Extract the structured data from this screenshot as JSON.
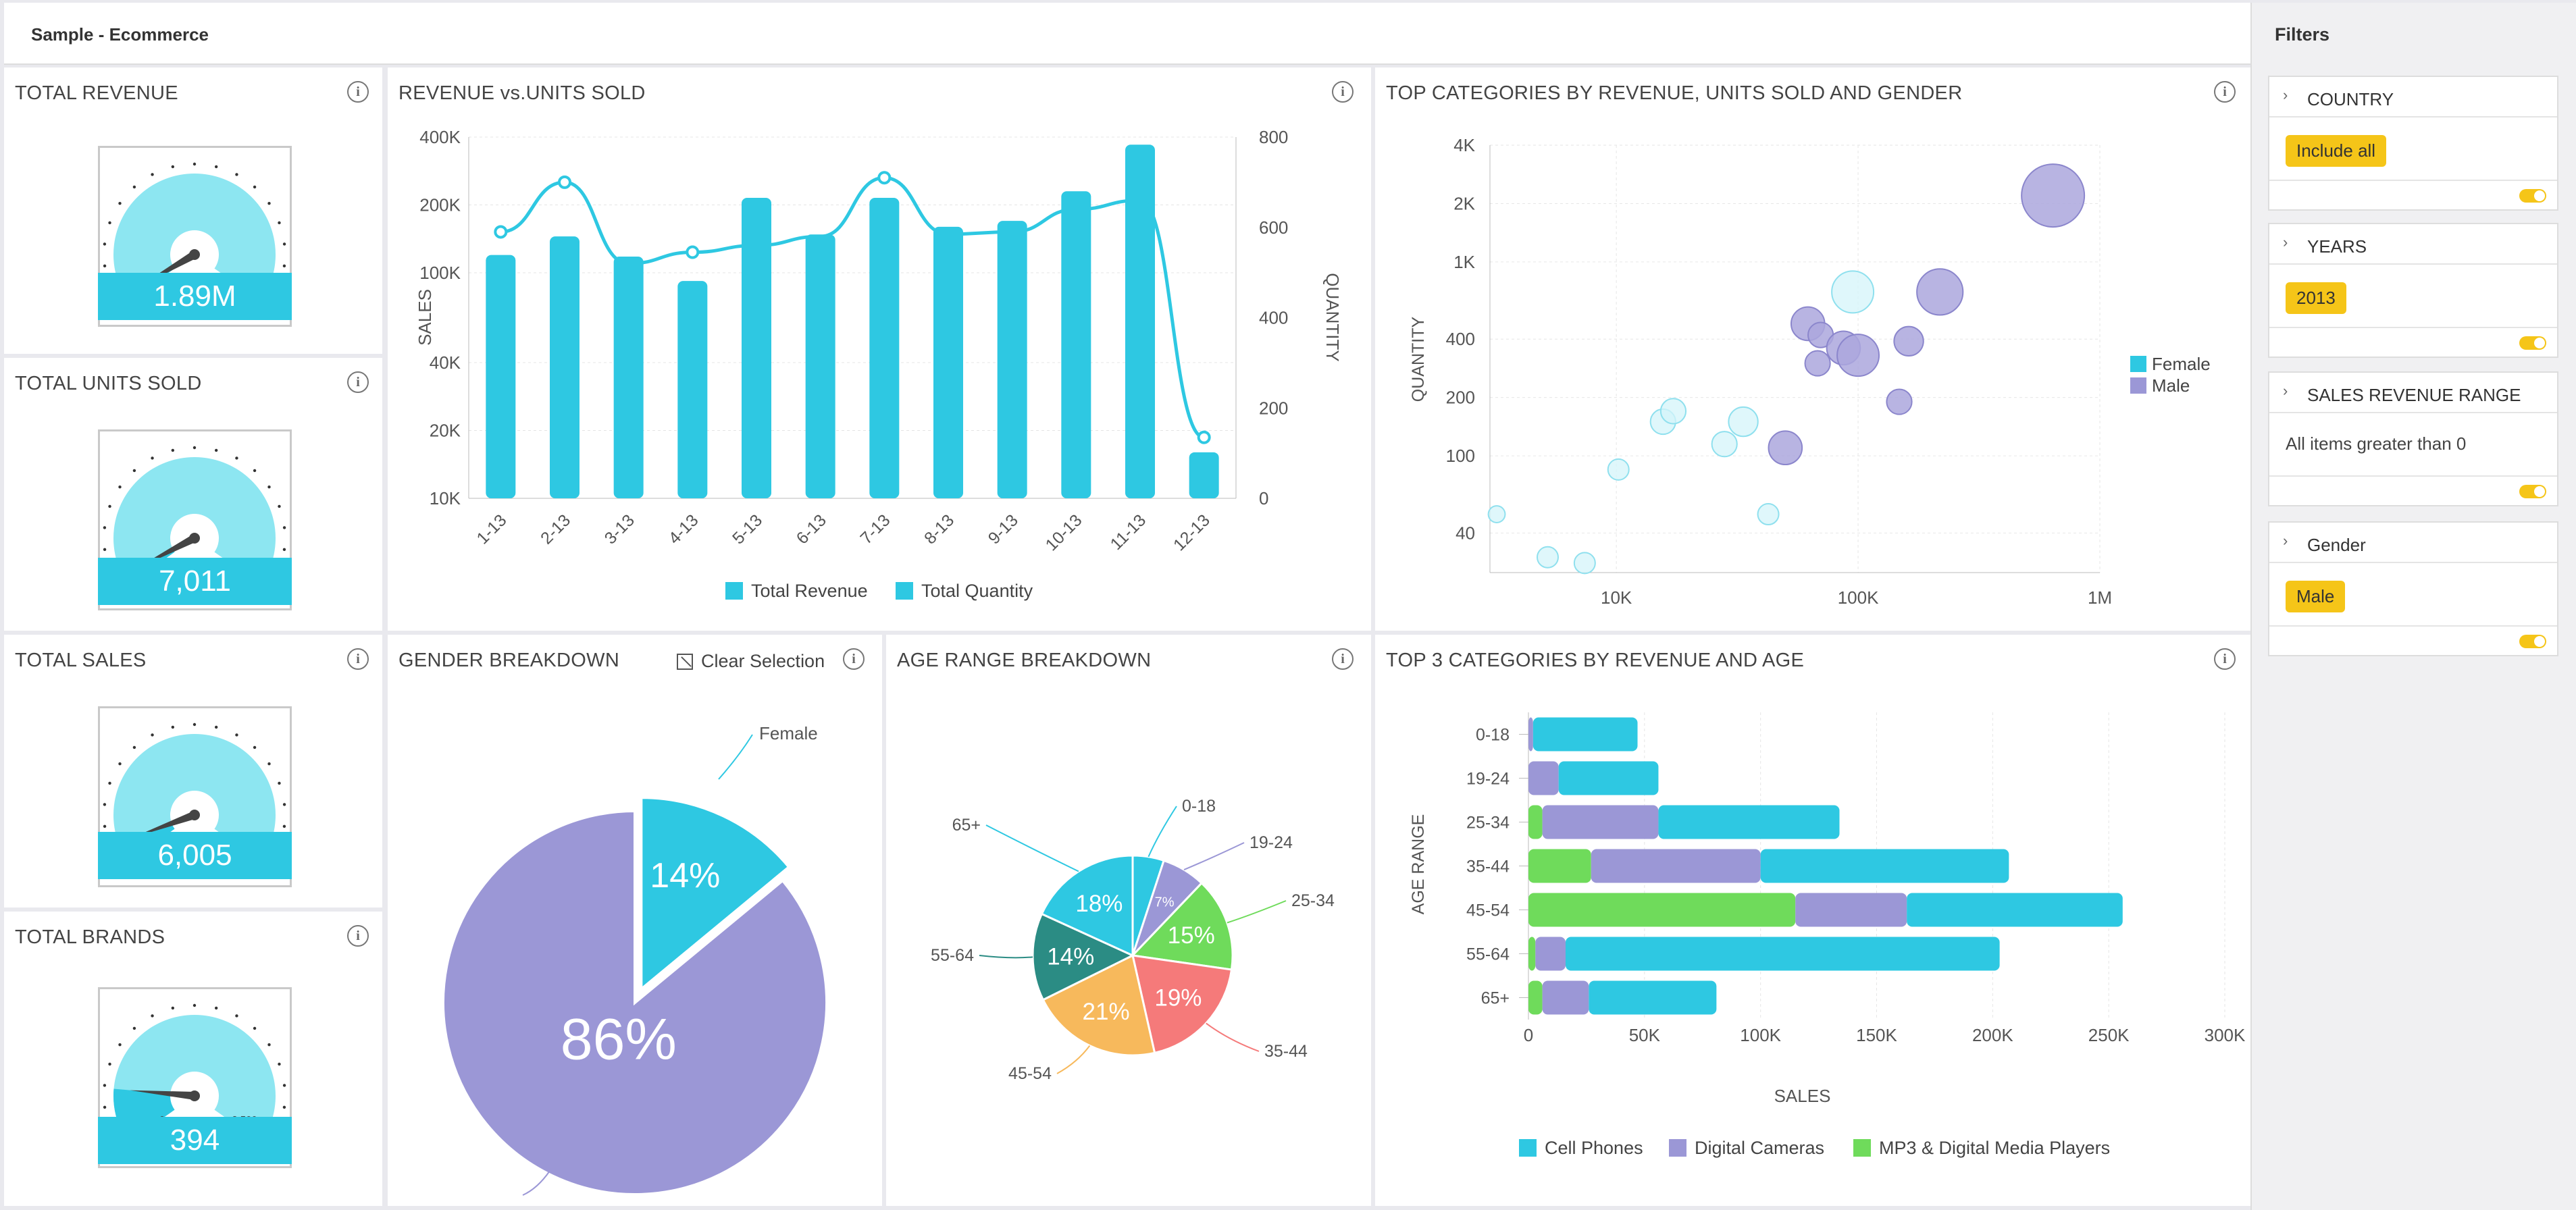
{
  "app": {
    "title": "Sample - Ecommerce"
  },
  "kpis": [
    {
      "title": "TOTAL REVENUE",
      "value": "1.89M",
      "min": "0",
      "max": "125M",
      "fraction": 0.02
    },
    {
      "title": "TOTAL UNITS SOLD",
      "value": "7,011",
      "min": "0",
      "max": "250K",
      "fraction": 0.03
    },
    {
      "title": "TOTAL SALES",
      "value": "6,005",
      "min": "0",
      "max": "100,000",
      "fraction": 0.06
    },
    {
      "title": "TOTAL BRANDS",
      "value": "394",
      "min": "0",
      "max": "2,500",
      "fraction": 0.16
    }
  ],
  "colors": {
    "accent": "#2ec8e2",
    "female": "#2ec8e2",
    "male": "#9b97d6",
    "mp3": "#6fdb5b",
    "gauge_fill": "#8de6f1"
  },
  "revenue_chart": {
    "title": "REVENUE vs.UNITS SOLD",
    "chart_data": {
      "type": "bar",
      "categories": [
        "1-13",
        "2-13",
        "3-13",
        "4-13",
        "5-13",
        "6-13",
        "7-13",
        "8-13",
        "9-13",
        "10-13",
        "11-13",
        "12-13"
      ],
      "series": [
        {
          "name": "Total Revenue",
          "kind": "bar",
          "values": [
            120000,
            145000,
            118000,
            92000,
            215000,
            148000,
            215000,
            160000,
            170000,
            230000,
            370000,
            16000
          ]
        },
        {
          "name": "Total Quantity",
          "kind": "line",
          "values": [
            590,
            700,
            520,
            545,
            560,
            580,
            710,
            585,
            590,
            640,
            660,
            135
          ]
        }
      ],
      "ylabel": "SALES",
      "y2label": "QUANTITY",
      "yticks": [
        "10K",
        "20K",
        "40K",
        "100K",
        "200K",
        "400K"
      ],
      "y2ticks": [
        "0",
        "200",
        "400",
        "600",
        "800"
      ],
      "ylim": [
        10000,
        400000
      ],
      "y2lim": [
        0,
        800
      ]
    }
  },
  "top_categories_chart": {
    "title": "TOP CATEGORIES BY REVENUE, UNITS SOLD AND GENDER",
    "chart_data": {
      "type": "scatter",
      "xlabel": "",
      "ylabel": "QUANTITY",
      "xticks": [
        "10K",
        "100K",
        "1M"
      ],
      "yticks": [
        "40",
        "100",
        "200",
        "400",
        "1K",
        "2K",
        "4K"
      ],
      "xlim": [
        3000,
        1000000
      ],
      "ylim": [
        25,
        4000
      ],
      "series": [
        {
          "name": "Female",
          "points": [
            [
              3200,
              50,
              4
            ],
            [
              5200,
              30,
              5
            ],
            [
              7400,
              28,
              5
            ],
            [
              10200,
              85,
              5
            ],
            [
              15600,
              150,
              6
            ],
            [
              17200,
              170,
              6
            ],
            [
              28000,
              115,
              6
            ],
            [
              33500,
              150,
              7
            ],
            [
              42500,
              50,
              5
            ],
            [
              95000,
              700,
              10
            ]
          ]
        },
        {
          "name": "Male",
          "points": [
            [
              50000,
              110,
              8
            ],
            [
              62000,
              480,
              8
            ],
            [
              68000,
              300,
              6
            ],
            [
              70000,
              420,
              6
            ],
            [
              87000,
              360,
              8
            ],
            [
              100000,
              330,
              10
            ],
            [
              148000,
              190,
              6
            ],
            [
              162000,
              390,
              7
            ],
            [
              218000,
              700,
              11
            ],
            [
              640000,
              2200,
              15
            ]
          ]
        }
      ]
    }
  },
  "gender_chart": {
    "title": "GENDER BREAKDOWN",
    "clear_selection": "Clear Selection",
    "chart_data": {
      "type": "pie",
      "labels": [
        "Female",
        "Male"
      ],
      "values": [
        14,
        86
      ],
      "display": [
        "14%",
        "86%"
      ]
    }
  },
  "age_chart": {
    "title": "AGE RANGE BREAKDOWN",
    "chart_data": {
      "type": "pie",
      "labels": [
        "0-18",
        "19-24",
        "25-34",
        "35-44",
        "45-54",
        "55-64",
        "65+"
      ],
      "values": [
        5,
        7,
        15,
        19,
        21,
        14,
        18
      ],
      "display": [
        "",
        "7%",
        "15%",
        "19%",
        "21%",
        "14%",
        "18%"
      ],
      "colors": [
        "#2ec8e2",
        "#9b97d6",
        "#6fdb5b",
        "#f57a7a",
        "#f7b95c",
        "#2b8c84",
        "#2ec8e2"
      ]
    }
  },
  "top3_chart": {
    "title": "TOP 3 CATEGORIES BY REVENUE AND AGE",
    "chart_data": {
      "type": "bar",
      "orientation": "horizontal",
      "stacked": true,
      "categories": [
        "0-18",
        "19-24",
        "25-34",
        "35-44",
        "45-54",
        "55-64",
        "65+"
      ],
      "series": [
        {
          "name": "MP3 & Digital Media Players",
          "values": [
            0,
            0,
            6000,
            27000,
            115000,
            3000,
            6000
          ]
        },
        {
          "name": "Digital Cameras",
          "values": [
            2000,
            13000,
            50000,
            73000,
            48000,
            13000,
            20000
          ]
        },
        {
          "name": "Cell Phones",
          "values": [
            45000,
            43000,
            78000,
            107000,
            93000,
            187000,
            55000
          ]
        }
      ],
      "xlabel": "SALES",
      "ylabel": "AGE RANGE",
      "xticks": [
        "0",
        "50K",
        "100K",
        "150K",
        "200K",
        "250K",
        "300K"
      ],
      "xlim": [
        0,
        300000
      ]
    }
  },
  "filters": {
    "title": "Filters",
    "items": [
      {
        "label": "COUNTRY",
        "chip": "Include all"
      },
      {
        "label": "YEARS",
        "chip": "2013"
      },
      {
        "label": "SALES REVENUE RANGE",
        "text": "All items greater than 0"
      },
      {
        "label": "Gender",
        "chip": "Male"
      }
    ]
  }
}
